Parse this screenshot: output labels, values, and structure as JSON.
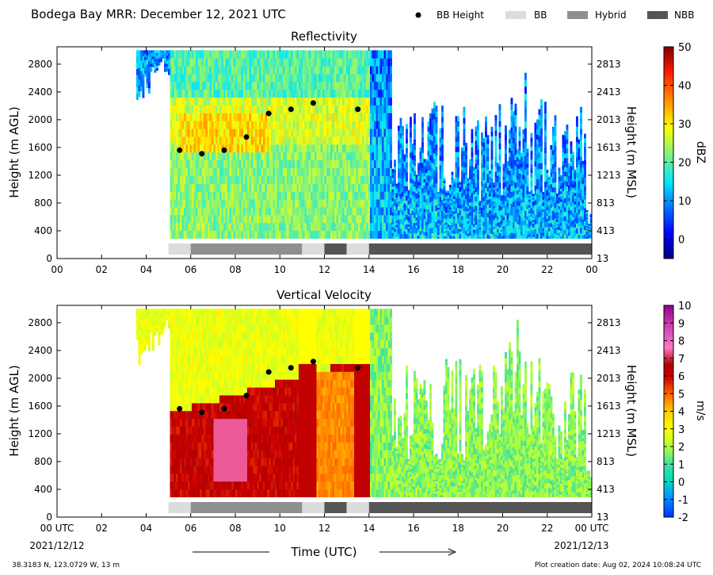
{
  "header": {
    "title": "Bodega Bay MRR:  December 12, 2021 UTC",
    "legend": [
      {
        "label": "BB Height",
        "kind": "dot",
        "color": "#000000"
      },
      {
        "label": "BB",
        "kind": "swatch",
        "color": "#dcdcdc"
      },
      {
        "label": "Hybrid",
        "kind": "swatch",
        "color": "#8f8f8f"
      },
      {
        "label": "NBB",
        "kind": "swatch",
        "color": "#555555"
      }
    ]
  },
  "footer": {
    "location": "38.3183 N, 123.0729 W, 13 m",
    "creation": "Plot creation date: Aug 02, 2024 10:08:24 UTC",
    "start_date": "2021/12/12",
    "end_date": "2021/12/13",
    "time_label": "Time (UTC)"
  },
  "chart_data": [
    {
      "type": "heatmap",
      "title": "Reflectivity",
      "xlabel": "",
      "ylabel": "Height (m AGL)",
      "ylabel_right": "Height (m MSL)",
      "x_range": [
        0,
        24
      ],
      "y_range": [
        0,
        3050
      ],
      "x_ticks": [
        "00",
        "02",
        "04",
        "06",
        "08",
        "10",
        "12",
        "14",
        "16",
        "18",
        "20",
        "22",
        "00"
      ],
      "y_ticks": [
        0,
        400,
        800,
        1200,
        1600,
        2000,
        2400,
        2800
      ],
      "y_ticks_right": [
        13,
        413,
        813,
        1213,
        1613,
        2013,
        2413,
        2813
      ],
      "colorbar": {
        "label": "dBZ",
        "min": -5,
        "max": 50,
        "ticks": [
          0,
          10,
          20,
          30,
          40,
          50
        ]
      },
      "bb_height": [
        {
          "x": 5.5,
          "y": 1560
        },
        {
          "x": 6.5,
          "y": 1510
        },
        {
          "x": 7.5,
          "y": 1560
        },
        {
          "x": 8.5,
          "y": 1750
        },
        {
          "x": 9.5,
          "y": 2090
        },
        {
          "x": 10.5,
          "y": 2150
        },
        {
          "x": 11.5,
          "y": 2240
        },
        {
          "x": 13.5,
          "y": 2150
        }
      ],
      "bb_type": [
        {
          "start": 5.0,
          "end": 6.0,
          "type": "BB"
        },
        {
          "start": 6.0,
          "end": 11.0,
          "type": "Hybrid"
        },
        {
          "start": 11.0,
          "end": 12.0,
          "type": "BB"
        },
        {
          "start": 12.0,
          "end": 13.0,
          "type": "NBB"
        },
        {
          "start": 13.0,
          "end": 14.0,
          "type": "BB"
        },
        {
          "start": 14.0,
          "end": 24.0,
          "type": "NBB"
        }
      ]
    },
    {
      "type": "heatmap",
      "title": "Vertical Velocity",
      "xlabel": "Time (UTC)",
      "ylabel": "Height (m AGL)",
      "ylabel_right": "Height (m MSL)",
      "x_range": [
        0,
        24
      ],
      "y_range": [
        0,
        3050
      ],
      "x_ticks": [
        "00 UTC",
        "02",
        "04",
        "06",
        "08",
        "10",
        "12",
        "14",
        "16",
        "18",
        "20",
        "22",
        "00 UTC"
      ],
      "y_ticks": [
        0,
        400,
        800,
        1200,
        1600,
        2000,
        2400,
        2800
      ],
      "y_ticks_right": [
        13,
        413,
        813,
        1213,
        1613,
        2013,
        2413,
        2813
      ],
      "colorbar": {
        "label": "m/s",
        "min": -2,
        "max": 10,
        "ticks": [
          -2,
          -1,
          0,
          1,
          2,
          3,
          4,
          5,
          6,
          7,
          8,
          9,
          10
        ]
      },
      "bb_height": [
        {
          "x": 5.5,
          "y": 1560
        },
        {
          "x": 6.5,
          "y": 1510
        },
        {
          "x": 7.5,
          "y": 1560
        },
        {
          "x": 8.5,
          "y": 1750
        },
        {
          "x": 9.5,
          "y": 2090
        },
        {
          "x": 10.5,
          "y": 2150
        },
        {
          "x": 11.5,
          "y": 2240
        },
        {
          "x": 13.5,
          "y": 2150
        }
      ],
      "bb_type": [
        {
          "start": 5.0,
          "end": 6.0,
          "type": "BB"
        },
        {
          "start": 6.0,
          "end": 11.0,
          "type": "Hybrid"
        },
        {
          "start": 11.0,
          "end": 12.0,
          "type": "BB"
        },
        {
          "start": 12.0,
          "end": 13.0,
          "type": "NBB"
        },
        {
          "start": 13.0,
          "end": 14.0,
          "type": "BB"
        },
        {
          "start": 14.0,
          "end": 24.0,
          "type": "NBB"
        }
      ]
    }
  ]
}
